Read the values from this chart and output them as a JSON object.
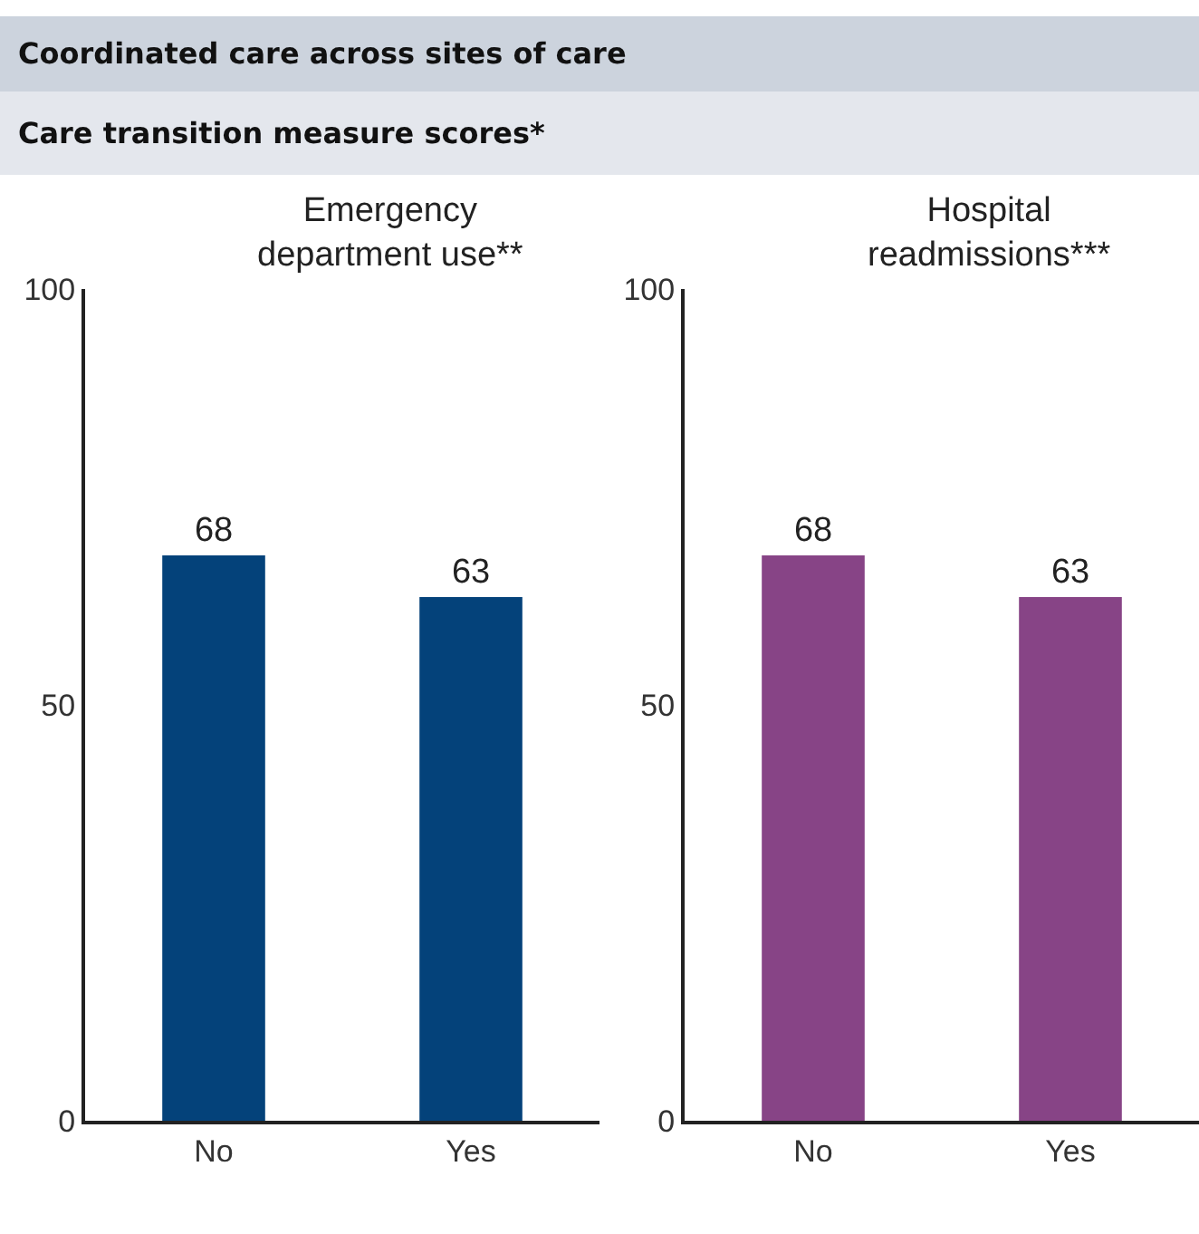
{
  "chart_data": [
    {
      "type": "bar",
      "title": "Emergency department use**",
      "annotations": [
        "Coordinated care across sites of care",
        "Care transition measure scores*"
      ],
      "categories": [
        "No",
        "Yes"
      ],
      "series": [
        {
          "color": "#04427a",
          "values": [
            68,
            63
          ]
        }
      ],
      "ylim": [
        0,
        100
      ],
      "yticks": [
        0,
        50,
        100
      ],
      "data_labels": true
    },
    {
      "type": "bar",
      "title": "Hospital readmissions***",
      "categories": [
        "No",
        "Yes"
      ],
      "series": [
        {
          "color": "#874486",
          "values": [
            68,
            63
          ]
        }
      ],
      "ylim": [
        0,
        100
      ],
      "yticks": [
        0,
        50,
        100
      ],
      "data_labels": true
    }
  ]
}
